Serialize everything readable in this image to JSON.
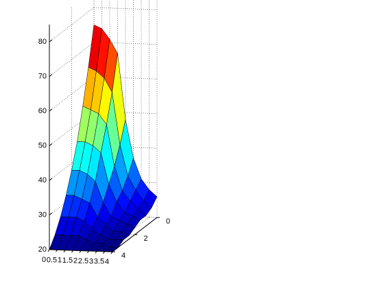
{
  "chart_data": {
    "type": "surface",
    "x": [
      0,
      0.5,
      1,
      1.5,
      2,
      2.5,
      3,
      3.5,
      4
    ],
    "y": [
      0,
      0.5,
      1,
      1.5,
      2,
      2.5,
      3,
      3.5,
      4
    ],
    "z": [
      [
        75,
        74,
        71,
        67,
        48,
        37,
        31,
        28,
        26
      ],
      [
        64,
        63,
        61,
        57,
        42,
        33,
        29,
        26,
        24
      ],
      [
        54,
        53,
        52,
        49,
        37,
        30,
        27,
        25,
        23
      ],
      [
        45,
        45,
        44,
        42,
        33,
        28,
        25,
        24,
        23
      ],
      [
        38,
        38,
        37,
        35,
        29,
        25,
        24,
        23,
        22
      ],
      [
        32,
        32,
        31,
        30,
        26,
        24,
        22,
        22,
        21
      ],
      [
        27,
        27,
        27,
        26,
        24,
        22,
        21,
        21,
        21
      ],
      [
        23,
        23,
        23,
        23,
        22,
        21,
        21,
        20,
        20
      ],
      [
        20,
        20,
        20,
        20,
        20,
        20,
        20,
        20,
        20
      ]
    ],
    "xlim": [
      0,
      4
    ],
    "ylim": [
      0,
      4
    ],
    "zlim": [
      20,
      85
    ],
    "xticks": [
      0,
      0.5,
      1,
      1.5,
      2,
      2.5,
      3,
      3.5,
      4
    ],
    "yticks": [
      0,
      2,
      4
    ],
    "zticks": [
      20,
      30,
      40,
      50,
      60,
      70,
      80
    ],
    "colormap": "jet",
    "grid": true
  }
}
